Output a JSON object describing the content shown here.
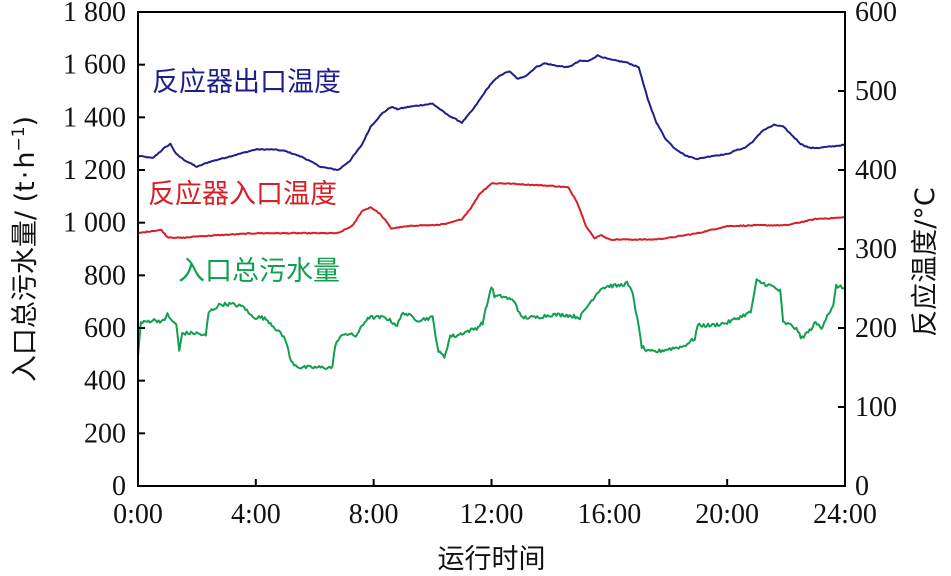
{
  "chart_data": {
    "type": "line",
    "xlabel": "运行时间",
    "ylabel_left": "入口总污水量/ (t·h⁻¹)",
    "ylabel_left_parts": [
      "入口总污水量/ (t",
      "·",
      "h",
      "−1",
      ")"
    ],
    "ylabel_right": "反应温度/°C",
    "x_ticks": [
      "0:00",
      "4:00",
      "8:00",
      "12:00",
      "16:00",
      "20:00",
      "24:00"
    ],
    "x_tick_hours": [
      0,
      4,
      8,
      12,
      16,
      20,
      24
    ],
    "xlim": [
      0,
      24
    ],
    "ylim_left": [
      0,
      1800
    ],
    "ylim_right": [
      0,
      600
    ],
    "y_ticks_left": [
      0,
      200,
      400,
      600,
      800,
      1000,
      1200,
      1400,
      1600,
      1800
    ],
    "y_tick_labels_left": [
      "0",
      "200",
      "400",
      "600",
      "800",
      "1 000",
      "1 200",
      "1 400",
      "1 600",
      "1 800"
    ],
    "y_ticks_right": [
      0,
      100,
      200,
      300,
      400,
      500,
      600
    ],
    "y_tick_labels_right": [
      "0",
      "100",
      "200",
      "300",
      "400",
      "500",
      "600"
    ],
    "grid": false,
    "series": [
      {
        "name": "反应器出口温度",
        "axis": "right",
        "color": "#1f1f8a",
        "x": [
          0,
          0.5,
          0.9,
          1.1,
          1.3,
          1.6,
          2.0,
          2.4,
          3.0,
          4.0,
          4.6,
          5.0,
          5.6,
          6.2,
          6.8,
          7.2,
          7.6,
          7.9,
          8.3,
          8.6,
          8.8,
          9.2,
          9.6,
          10.0,
          10.5,
          11.0,
          11.4,
          11.8,
          12.0,
          12.3,
          12.6,
          12.9,
          13.2,
          13.5,
          13.8,
          14.2,
          14.6,
          15.0,
          15.3,
          15.6,
          16.0,
          16.3,
          16.6,
          17.0,
          17.3,
          17.6,
          17.9,
          18.2,
          18.6,
          19.0,
          19.5,
          20.0,
          20.3,
          20.6,
          20.9,
          21.2,
          21.6,
          21.9,
          22.2,
          22.5,
          22.8,
          23.1,
          23.6,
          24.0
        ],
        "y": [
          418,
          415,
          428,
          433,
          420,
          412,
          404,
          410,
          416,
          426,
          426,
          424,
          416,
          404,
          400,
          412,
          432,
          455,
          472,
          480,
          477,
          480,
          482,
          484,
          470,
          460,
          478,
          500,
          510,
          520,
          525,
          515,
          520,
          530,
          535,
          532,
          530,
          538,
          538,
          545,
          540,
          538,
          536,
          530,
          490,
          460,
          440,
          428,
          418,
          414,
          418,
          420,
          425,
          428,
          437,
          450,
          457,
          455,
          444,
          433,
          428,
          428,
          430,
          432
        ]
      },
      {
        "name": "反应器入口温度",
        "axis": "right",
        "color": "#d61f26",
        "x": [
          0,
          0.5,
          0.8,
          1.0,
          1.5,
          2.0,
          3.0,
          4.0,
          5.0,
          6.0,
          6.8,
          7.3,
          7.6,
          7.9,
          8.2,
          8.4,
          8.6,
          9.0,
          9.5,
          10.0,
          10.5,
          11.0,
          11.3,
          11.6,
          12.0,
          12.5,
          13.0,
          14.0,
          14.6,
          14.9,
          15.2,
          15.5,
          15.7,
          16.0,
          17.0,
          17.5,
          18.0,
          19.0,
          20.0,
          21.0,
          22.0,
          22.5,
          23.0,
          24.0
        ],
        "y": [
          320,
          323,
          324,
          315,
          314,
          316,
          318,
          320,
          320,
          320,
          320,
          330,
          348,
          353,
          345,
          336,
          326,
          328,
          330,
          330,
          332,
          338,
          352,
          370,
          383,
          383,
          382,
          380,
          378,
          360,
          330,
          313,
          318,
          312,
          312,
          312,
          314,
          320,
          329,
          330,
          330,
          334,
          338,
          340
        ]
      },
      {
        "name": "入口总污水量",
        "axis": "left",
        "color": "#10a050",
        "x": [
          0,
          0.1,
          0.15,
          0.5,
          0.9,
          1.0,
          1.1,
          1.3,
          1.4,
          1.5,
          2.0,
          2.3,
          2.4,
          2.8,
          3.2,
          3.6,
          3.8,
          4.0,
          4.2,
          4.4,
          5.0,
          5.2,
          5.5,
          5.8,
          6.2,
          6.6,
          6.7,
          7.0,
          7.4,
          7.8,
          8.0,
          8.4,
          8.8,
          9.0,
          9.5,
          10.0,
          10.2,
          10.4,
          10.6,
          10.8,
          11.0,
          11.5,
          11.7,
          12.0,
          12.1,
          12.4,
          12.8,
          13.0,
          13.5,
          14.0,
          14.5,
          15.0,
          15.3,
          15.7,
          16.0,
          16.3,
          16.6,
          16.8,
          17.0,
          17.1,
          17.3,
          17.6,
          18.0,
          18.5,
          18.9,
          19.0,
          19.5,
          20.0,
          20.4,
          20.8,
          21.0,
          21.2,
          21.5,
          21.8,
          21.9,
          22.2,
          22.4,
          22.5,
          22.8,
          23.0,
          23.2,
          23.4,
          23.6,
          23.7,
          24.0
        ],
        "y": [
          500,
          620,
          620,
          630,
          625,
          660,
          630,
          615,
          510,
          580,
          580,
          570,
          660,
          690,
          690,
          680,
          650,
          640,
          640,
          630,
          560,
          470,
          450,
          450,
          450,
          450,
          540,
          580,
          570,
          640,
          640,
          640,
          610,
          660,
          630,
          640,
          510,
          490,
          570,
          570,
          580,
          600,
          620,
          760,
          720,
          720,
          700,
          640,
          640,
          650,
          650,
          640,
          690,
          750,
          760,
          760,
          770,
          730,
          600,
          530,
          510,
          510,
          520,
          530,
          560,
          610,
          610,
          620,
          640,
          660,
          780,
          770,
          760,
          740,
          620,
          610,
          590,
          560,
          590,
          620,
          600,
          650,
          680,
          760,
          750
        ]
      }
    ],
    "annotations": [
      {
        "text": "反应器出口温度",
        "series": "反应器出口温度"
      },
      {
        "text": "反应器入口温度",
        "series": "反应器入口温度"
      },
      {
        "text": "入口总污水量",
        "series": "入口总污水量"
      }
    ]
  }
}
